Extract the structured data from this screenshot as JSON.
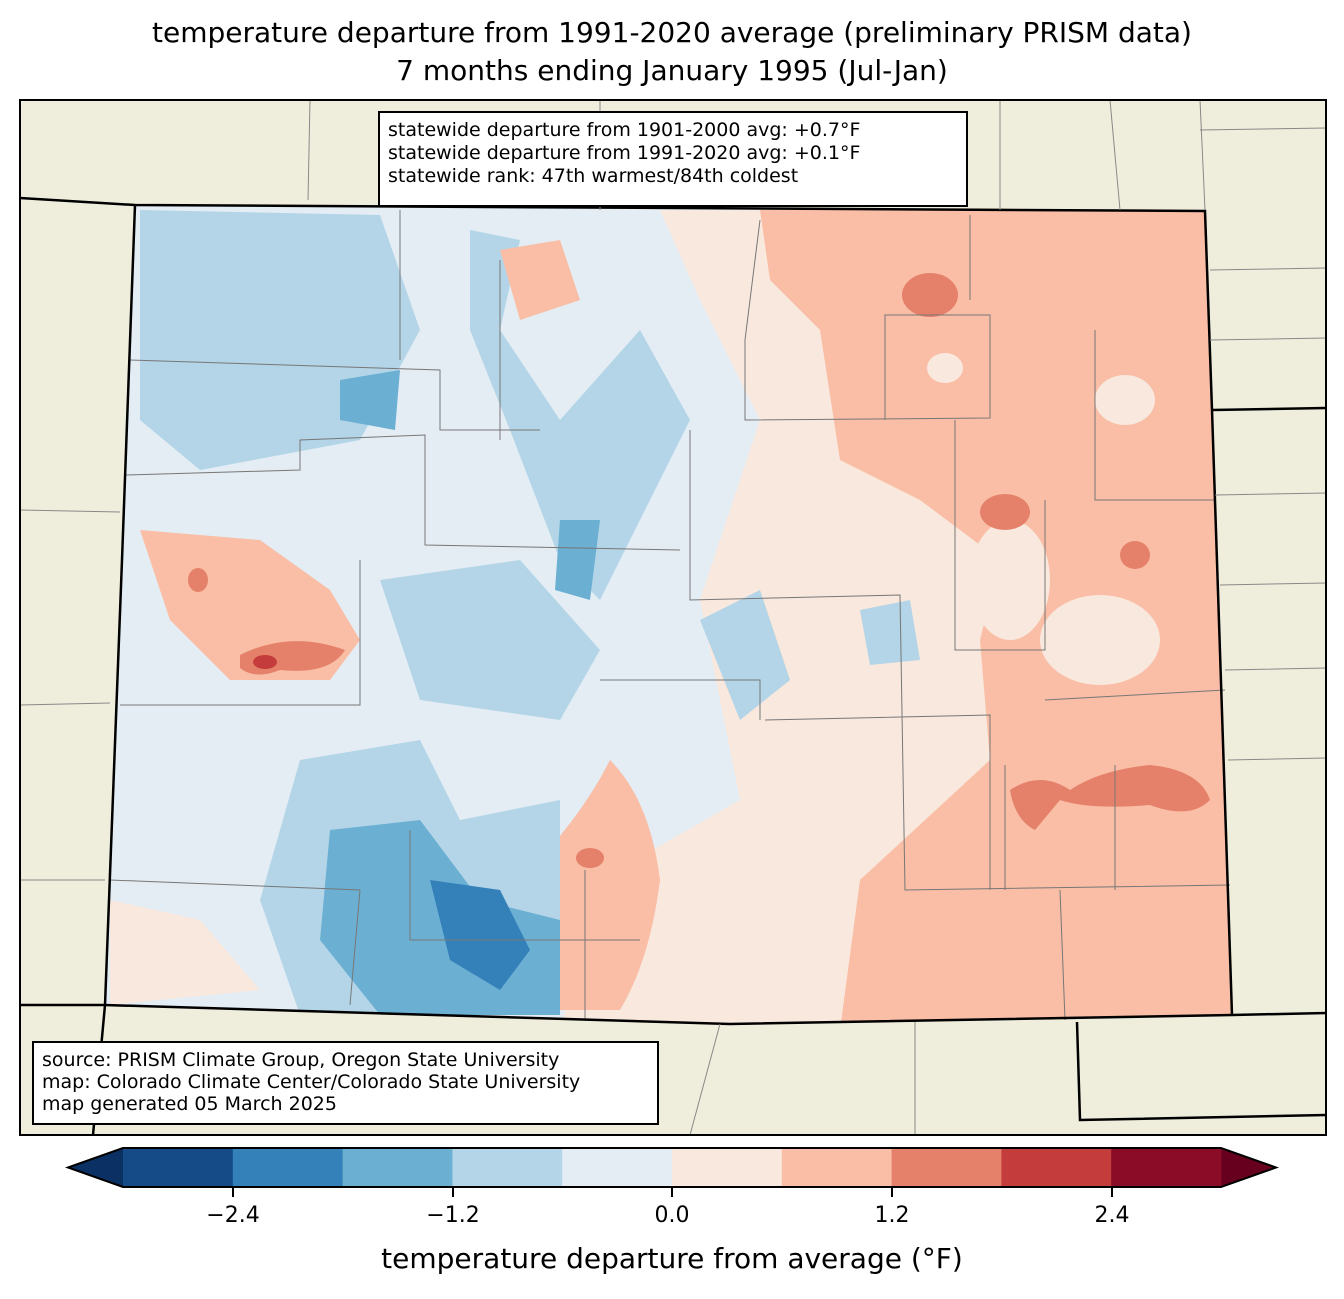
{
  "title": {
    "line1": "temperature departure from 1991-2020 average (preliminary PRISM data)",
    "line2": "7 months ending January 1995 (Jul-Jan)"
  },
  "stats_box": {
    "line1": "statewide departure from 1901-2000 avg: +0.7°F",
    "line2": "statewide departure from 1991-2020 avg: +0.1°F",
    "line3": "statewide rank: 47th warmest/84th coldest"
  },
  "source_box": {
    "line1": "source: PRISM Climate Group, Oregon State University",
    "line2": "map: Colorado Climate Center/Colorado State University",
    "line3": "map generated 05 March 2025"
  },
  "colorbar": {
    "label": "temperature departure from average (°F)",
    "ticks": [
      "−2.4",
      "−1.2",
      "0.0",
      "1.2",
      "2.4"
    ],
    "bounds": [
      -3.0,
      -2.4,
      -1.8,
      -1.2,
      -0.6,
      0.0,
      0.6,
      1.2,
      1.8,
      2.4,
      3.0
    ],
    "colors": [
      "#154b86",
      "#3480b9",
      "#6bafd2",
      "#b3d5e7",
      "#e4edf4",
      "#f9e8de",
      "#f9bea5",
      "#e5816a",
      "#c43c3c",
      "#8a0c27"
    ],
    "under_color": "#0b3063",
    "over_color": "#67001f"
  },
  "land_color": "#efeedc"
}
